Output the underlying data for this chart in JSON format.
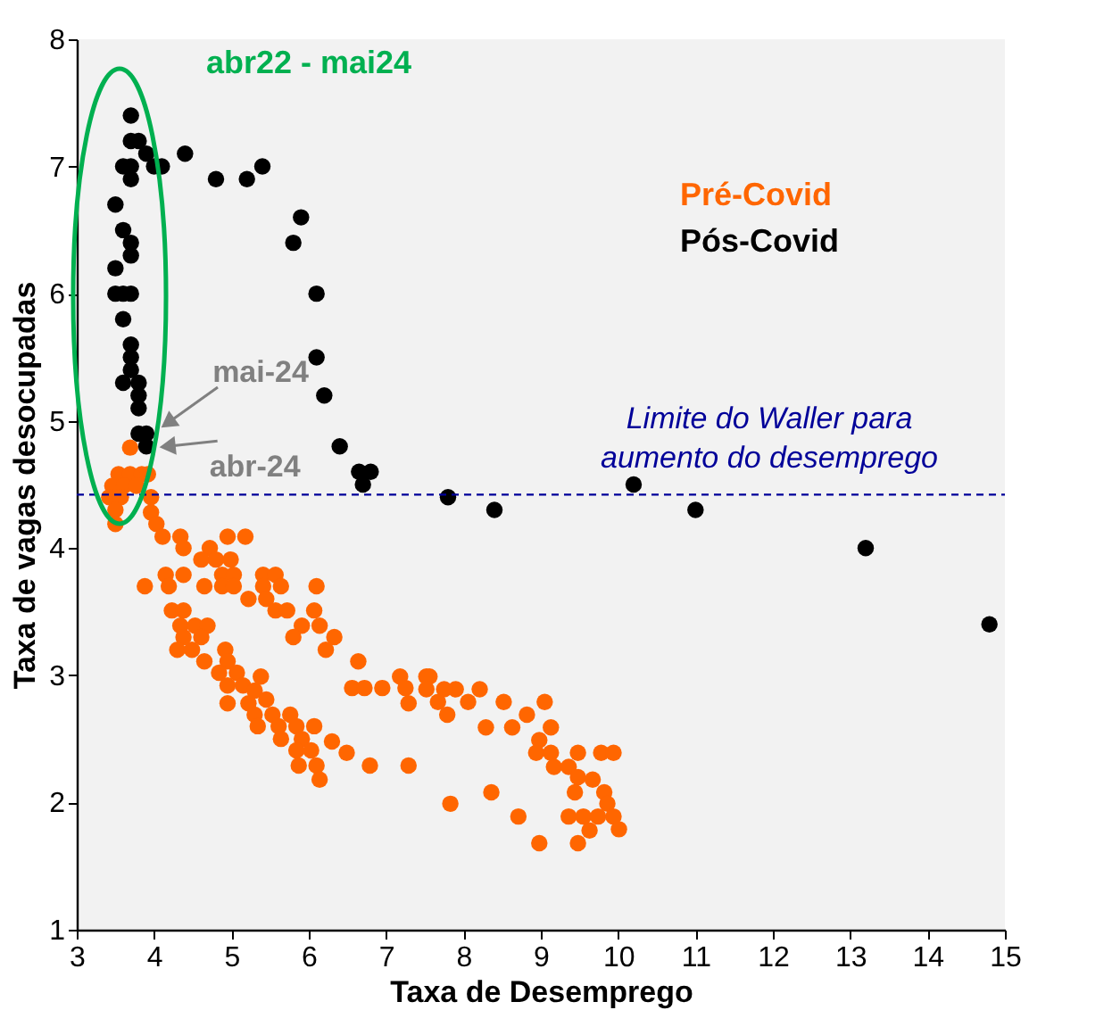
{
  "chart_data": {
    "type": "scatter",
    "xlabel": "Taxa de Desemprego",
    "ylabel": "Taxa de vagas desocupadas",
    "xlim": [
      3,
      15
    ],
    "xticks": [
      3,
      4,
      5,
      6,
      7,
      8,
      9,
      10,
      11,
      12,
      13,
      14,
      15
    ],
    "ylim": [
      1,
      8
    ],
    "yticks": [
      1,
      2,
      3,
      4,
      5,
      6,
      7,
      8
    ],
    "grid": false,
    "legend": "top right",
    "marker": "circle",
    "series": [
      {
        "name": "Pré-Covid",
        "color": "#ff6600",
        "x": [
          3.69,
          3.54,
          3.69,
          3.84,
          3.92,
          3.46,
          3.61,
          3.77,
          3.42,
          3.57,
          3.5,
          3.5,
          3.96,
          3.96,
          4.03,
          4.11,
          4.34,
          4.38,
          4.95,
          5.18,
          4.72,
          4.61,
          4.8,
          4.99,
          4.15,
          4.38,
          4.88,
          5.03,
          3.88,
          4.19,
          4.65,
          4.88,
          5.03,
          5.41,
          5.57,
          5.41,
          5.64,
          6.1,
          5.22,
          5.45,
          4.23,
          4.38,
          5.57,
          5.72,
          6.07,
          5.91,
          6.14,
          4.34,
          4.53,
          4.69,
          5.8,
          6.33,
          4.38,
          4.61,
          4.3,
          4.49,
          6.22,
          4.65,
          4.92,
          4.95,
          4.84,
          5.07,
          5.38,
          6.64,
          6.56,
          6.72,
          6.95,
          7.18,
          7.25,
          7.29,
          7.52,
          4.95,
          5.15,
          5.3,
          4.95,
          5.22,
          5.45,
          5.3,
          5.53,
          5.76,
          5.34,
          5.61,
          5.84,
          6.07,
          5.64,
          5.91,
          6.3,
          5.84,
          6.03,
          6.49,
          5.87,
          6.1,
          6.79,
          7.29,
          6.14,
          7.83,
          8.36,
          8.71,
          8.98,
          8.29,
          8.52,
          8.63,
          8.82,
          9.05,
          9.13,
          8.98,
          8.94,
          9.13,
          9.17,
          9.36,
          9.48,
          9.48,
          9.67,
          9.44,
          9.36,
          9.55,
          9.63,
          9.48,
          9.78,
          9.94,
          9.82,
          9.86,
          9.74,
          9.94,
          10.01,
          8.21,
          8.06,
          7.9,
          7.75,
          7.79,
          7.56,
          7.52,
          7.67
        ],
        "values": [
          4.79,
          4.58,
          4.58,
          4.58,
          4.58,
          4.49,
          4.49,
          4.49,
          4.4,
          4.4,
          4.3,
          4.19,
          4.4,
          4.28,
          4.19,
          4.09,
          4.09,
          4.0,
          4.09,
          4.09,
          4.0,
          3.91,
          3.91,
          3.91,
          3.79,
          3.79,
          3.79,
          3.79,
          3.7,
          3.7,
          3.7,
          3.7,
          3.7,
          3.79,
          3.79,
          3.7,
          3.7,
          3.7,
          3.6,
          3.6,
          3.51,
          3.51,
          3.51,
          3.51,
          3.51,
          3.39,
          3.39,
          3.39,
          3.39,
          3.39,
          3.3,
          3.3,
          3.3,
          3.3,
          3.2,
          3.2,
          3.2,
          3.11,
          3.2,
          3.11,
          3.02,
          3.02,
          2.99,
          3.11,
          2.9,
          2.9,
          2.9,
          2.99,
          2.9,
          2.78,
          2.99,
          2.92,
          2.92,
          2.88,
          2.78,
          2.78,
          2.81,
          2.69,
          2.69,
          2.69,
          2.6,
          2.6,
          2.6,
          2.6,
          2.5,
          2.5,
          2.48,
          2.41,
          2.41,
          2.39,
          2.29,
          2.29,
          2.29,
          2.29,
          2.18,
          1.99,
          2.08,
          1.89,
          1.68,
          2.59,
          2.79,
          2.59,
          2.69,
          2.79,
          2.59,
          2.49,
          2.39,
          2.39,
          2.28,
          2.28,
          2.39,
          2.2,
          2.18,
          2.08,
          1.89,
          1.89,
          1.78,
          1.68,
          2.39,
          2.39,
          2.08,
          1.99,
          1.89,
          1.89,
          1.79,
          2.89,
          2.79,
          2.89,
          2.89,
          2.69,
          2.99,
          2.89,
          2.79
        ]
      },
      {
        "name": "Pós-Covid",
        "color": "#000000",
        "x": [
          3.7,
          3.7,
          3.8,
          3.9,
          3.6,
          3.7,
          3.7,
          4.0,
          4.1,
          4.4,
          4.8,
          5.2,
          5.4,
          5.9,
          5.8,
          3.5,
          3.6,
          3.7,
          3.7,
          3.5,
          3.7,
          3.5,
          3.6,
          3.6,
          6.1,
          6.1,
          3.7,
          3.7,
          3.6,
          3.7,
          3.8,
          3.8,
          3.8,
          6.2,
          3.8,
          3.9,
          3.9,
          6.4,
          6.65,
          6.8,
          6.7,
          7.8,
          8.4,
          10.2,
          11.0,
          13.2,
          14.8
        ],
        "values": [
          7.4,
          7.2,
          7.2,
          7.1,
          7.0,
          7.0,
          6.9,
          7.0,
          7.0,
          7.1,
          6.9,
          6.9,
          7.0,
          6.6,
          6.4,
          6.7,
          6.5,
          6.4,
          6.3,
          6.2,
          6.0,
          6.0,
          6.0,
          5.8,
          6.0,
          5.5,
          5.6,
          5.5,
          5.3,
          5.4,
          5.3,
          5.2,
          5.1,
          5.2,
          4.9,
          4.8,
          4.9,
          4.8,
          4.6,
          4.6,
          4.5,
          4.4,
          4.3,
          4.5,
          4.3,
          4.0,
          3.4
        ]
      }
    ],
    "ref_lines": [
      {
        "axis": "y",
        "value": 4.42,
        "label": "Limite do Waller para\naumento do desemprego",
        "color": "#000099",
        "line_style": "dashed"
      }
    ],
    "annotations": [
      "abr22 - mai24",
      {
        "text": "mai-24",
        "x": 3.9,
        "y": 4.9
      },
      {
        "text": "abr-24",
        "x": 3.85,
        "y": 4.8
      }
    ]
  }
}
